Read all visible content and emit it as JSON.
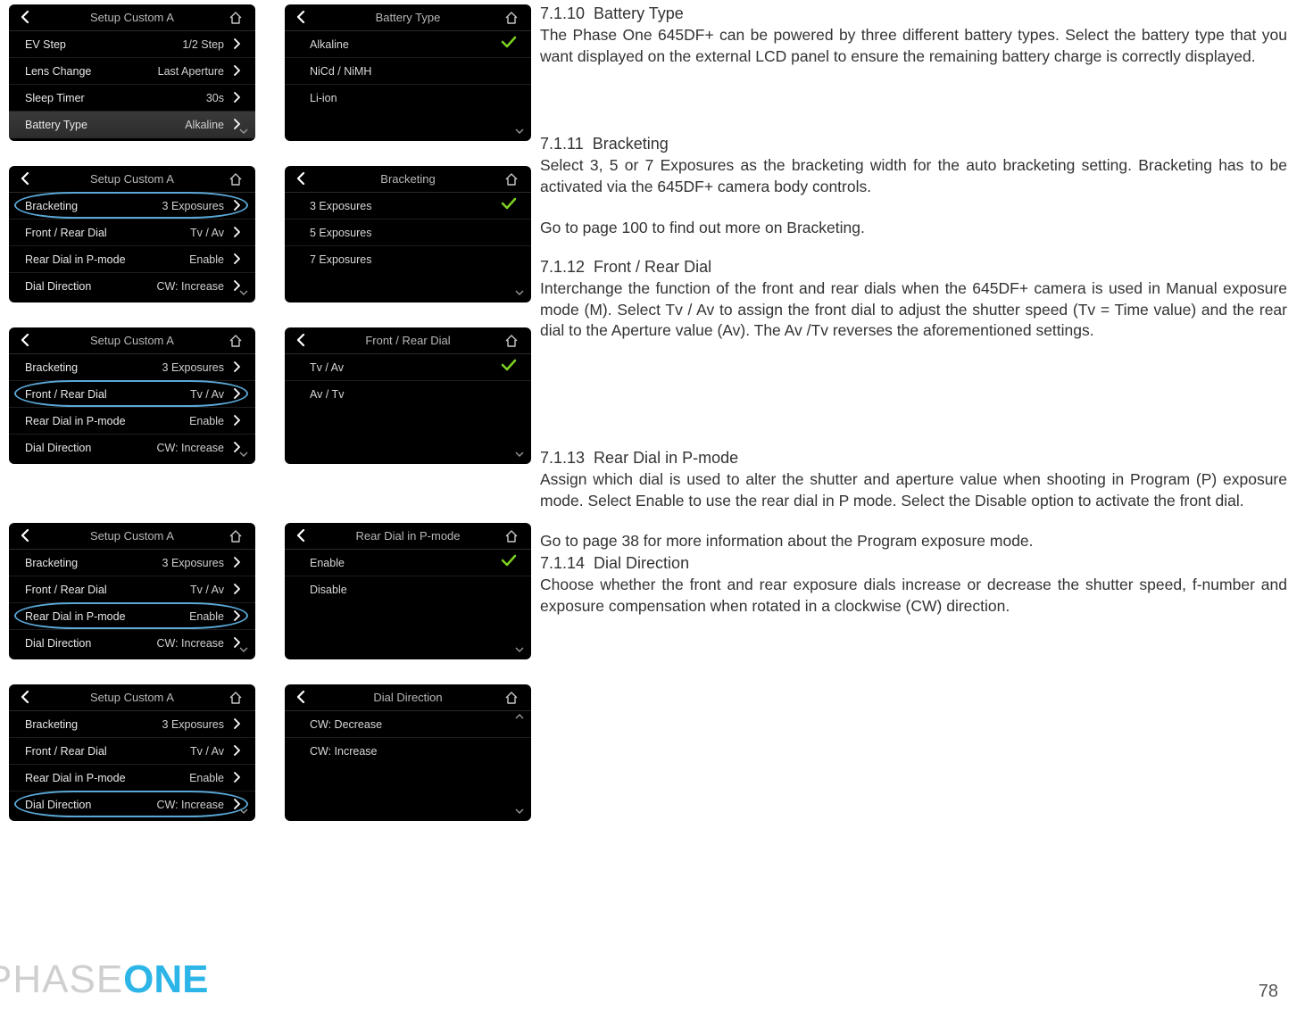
{
  "page_number": "78",
  "brand_phase": "PHASE",
  "brand_one": "ONE",
  "colors": {
    "screen_bg": "#000000",
    "screen_text": "#e8e8e8",
    "screen_muted": "#b8b8b8",
    "check": "#7ed321",
    "highlight_circle": "#5aa8d8",
    "body_text": "#333333",
    "brand_gray": "#cfcfcf",
    "brand_blue": "#2db5e8"
  },
  "screens": {
    "row1_left": {
      "title": "Setup Custom A",
      "items": [
        {
          "label": "EV Step",
          "value": "1/2 Step"
        },
        {
          "label": "Lens Change",
          "value": "Last Aperture"
        },
        {
          "label": "Sleep Timer",
          "value": "30s"
        },
        {
          "label": "Battery Type",
          "value": "Alkaline"
        }
      ],
      "highlight_index": 3
    },
    "row1_right": {
      "title": "Battery Type",
      "options": [
        "Alkaline",
        "NiCd / NiMH",
        "Li-ion"
      ],
      "selected_index": 0
    },
    "row2_left": {
      "title": "Setup Custom A",
      "items": [
        {
          "label": "Bracketing",
          "value": "3 Exposures"
        },
        {
          "label": "Front / Rear Dial",
          "value": "Tv / Av"
        },
        {
          "label": "Rear Dial in P-mode",
          "value": "Enable"
        },
        {
          "label": "Dial Direction",
          "value": "CW: Increase"
        }
      ],
      "circle_index": 0
    },
    "row2_right": {
      "title": "Bracketing",
      "options": [
        "3 Exposures",
        "5 Exposures",
        "7 Exposures"
      ],
      "selected_index": 0
    },
    "row3_left": {
      "title": "Setup Custom A",
      "items": [
        {
          "label": "Bracketing",
          "value": "3 Exposures"
        },
        {
          "label": "Front / Rear Dial",
          "value": "Tv / Av"
        },
        {
          "label": "Rear Dial in P-mode",
          "value": "Enable"
        },
        {
          "label": "Dial Direction",
          "value": "CW: Increase"
        }
      ],
      "circle_index": 1
    },
    "row3_right": {
      "title": "Front / Rear Dial",
      "options": [
        "Tv / Av",
        "Av / Tv"
      ],
      "selected_index": 0
    },
    "row4_left": {
      "title": "Setup Custom A",
      "items": [
        {
          "label": "Bracketing",
          "value": "3 Exposures"
        },
        {
          "label": "Front / Rear Dial",
          "value": "Tv / Av"
        },
        {
          "label": "Rear Dial in P-mode",
          "value": "Enable"
        },
        {
          "label": "Dial Direction",
          "value": "CW: Increase"
        }
      ],
      "circle_index": 2
    },
    "row4_right": {
      "title": "Rear Dial in P-mode",
      "options": [
        "Enable",
        "Disable"
      ],
      "selected_index": 0
    },
    "row5_left": {
      "title": "Setup Custom A",
      "items": [
        {
          "label": "Bracketing",
          "value": "3 Exposures"
        },
        {
          "label": "Front / Rear Dial",
          "value": "Tv / Av"
        },
        {
          "label": "Rear Dial in P-mode",
          "value": "Enable"
        },
        {
          "label": "Dial Direction",
          "value": "CW: Increase"
        }
      ],
      "circle_index": 3
    },
    "row5_right": {
      "title": "Dial Direction",
      "options": [
        "CW: Decrease",
        "CW: Increase"
      ],
      "selected_index": null
    }
  },
  "sections": [
    {
      "number": "7.1.10",
      "name": "Battery Type",
      "paragraphs": [
        "The Phase One 645DF+ can be powered by three different battery types. Select the battery type that you want displayed on the external LCD panel to ensure the remaining battery charge is correctly displayed."
      ]
    },
    {
      "number": "7.1.11",
      "name": "Bracketing",
      "paragraphs": [
        "Select 3, 5 or 7 Exposures as the bracketing width for the auto bracketing setting.  Bracketing has to be activated via the 645DF+ camera body controls.",
        "Go to page 100 to find out more on Bracketing."
      ]
    },
    {
      "number": "7.1.12",
      "name": "Front / Rear Dial",
      "paragraphs": [
        "Interchange the function of the front and rear dials when the 645DF+ camera is used in Manual exposure mode (M). Select Tv / Av to assign the front dial to adjust the shutter speed (Tv = Time value) and the rear dial to the Aperture value (Av). The Av /Tv reverses the aforementioned settings."
      ]
    },
    {
      "number": "7.1.13",
      "name": "Rear Dial in P-mode",
      "paragraphs": [
        "Assign which dial is used to alter the shutter and aperture value when shooting in Program (P) exposure mode. Select Enable to use the rear dial in P mode. Select the Disable option to activate the front dial.",
        "Go to page 38 for more information about the Program exposure mode."
      ]
    },
    {
      "number": "7.1.14",
      "name": "Dial Direction",
      "paragraphs": [
        "Choose whether the front and rear exposure dials increase or decrease the shutter speed, f-number and exposure compensation when rotated in a clockwise (CW) direction."
      ]
    }
  ]
}
